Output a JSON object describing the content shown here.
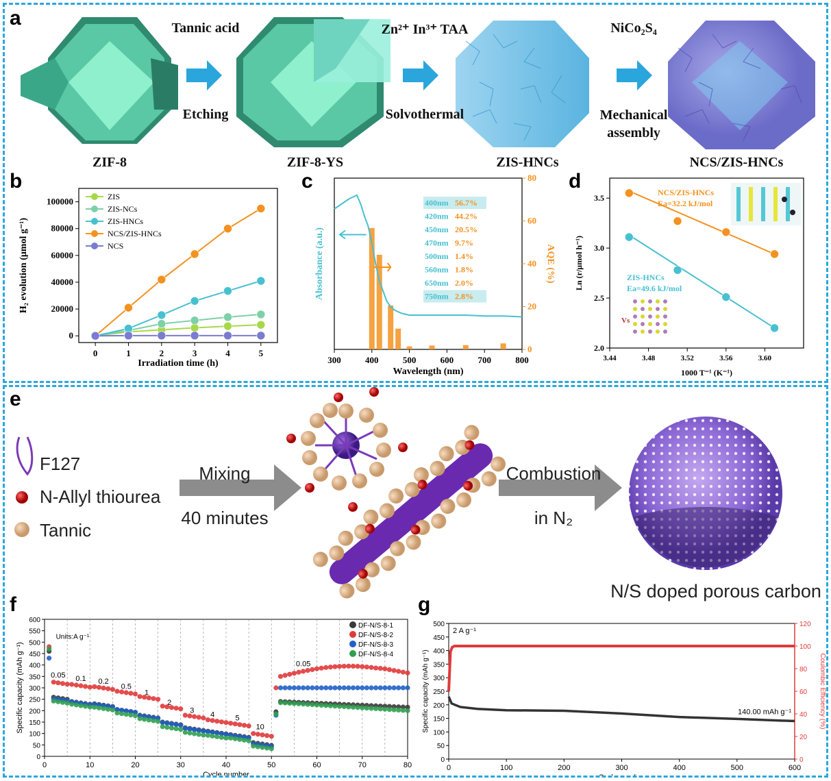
{
  "panel_a": {
    "label": "a",
    "steps": [
      {
        "top": "Tannic acid",
        "bottom": "Etching"
      },
      {
        "top": "Zn²⁺ In³⁺ TAA",
        "bottom": "Solvothermal"
      },
      {
        "top": "NiCo₂S₄",
        "bottom": "Mechanical assembly"
      }
    ],
    "products": [
      "ZIF-8",
      "ZIF-8-YS",
      "ZIS-HNCs",
      "NCS/ZIS-HNCs"
    ]
  },
  "panel_e": {
    "label": "e",
    "legend": [
      "F127",
      "N-Allyl thiourea",
      "Tannic"
    ],
    "step1_top": "Mixing",
    "step1_bottom": "40 minutes",
    "step2_top": "Combustion",
    "step2_bottom": "in N₂",
    "product": "N/S doped porous carbon"
  },
  "chart_data": [
    {
      "id": "b",
      "label": "b",
      "type": "line",
      "xlabel": "Irradiation time (h)",
      "ylabel": "H₂ evolution (μmol g⁻¹)",
      "xlim": [
        -0.5,
        5.5
      ],
      "ylim": [
        -5000,
        110000
      ],
      "xticks": [
        0,
        1,
        2,
        3,
        4,
        5
      ],
      "yticks": [
        0,
        20000,
        40000,
        60000,
        80000,
        100000
      ],
      "x": [
        0,
        1,
        2,
        3,
        4,
        5
      ],
      "series": [
        {
          "name": "ZIS",
          "color": "#a8d84a",
          "values": [
            0,
            3000,
            4500,
            6000,
            7200,
            8200
          ]
        },
        {
          "name": "ZIS-NCs",
          "color": "#7ed0a8",
          "values": [
            0,
            4000,
            9000,
            11500,
            14000,
            16000
          ]
        },
        {
          "name": "ZIS-HNCs",
          "color": "#48c0d0",
          "values": [
            0,
            5500,
            15500,
            26000,
            33500,
            41000
          ]
        },
        {
          "name": "NCS/ZIS-HNCs",
          "color": "#f39220",
          "values": [
            0,
            21000,
            42000,
            61000,
            80000,
            95000
          ]
        },
        {
          "name": "NCS",
          "color": "#7b7bd0",
          "values": [
            0,
            200,
            200,
            200,
            200,
            200
          ]
        }
      ]
    },
    {
      "id": "c",
      "label": "c",
      "type": "line+bar",
      "xlabel": "Wavelength (nm)",
      "ylabel_left": "Absorbance (a.u.)",
      "ylabel_right": "AQE (%)",
      "xlim": [
        300,
        800
      ],
      "ylim_right": [
        0,
        80
      ],
      "xticks": [
        300,
        400,
        500,
        600,
        700,
        800
      ],
      "yticks_right": [
        0,
        20,
        40,
        60,
        80
      ],
      "absorbance": {
        "x": [
          300,
          320,
          340,
          360,
          370,
          380,
          390,
          400,
          410,
          420,
          430,
          440,
          450,
          460,
          480,
          500,
          550,
          600,
          650,
          700,
          750,
          800
        ],
        "y": [
          0.82,
          0.85,
          0.88,
          0.9,
          0.85,
          0.78,
          0.72,
          0.62,
          0.5,
          0.4,
          0.34,
          0.28,
          0.25,
          0.23,
          0.21,
          0.2,
          0.2,
          0.2,
          0.2,
          0.195,
          0.195,
          0.19
        ]
      },
      "bars": {
        "x": [
          400,
          420,
          450,
          470,
          500,
          560,
          650,
          750
        ],
        "values": [
          56.7,
          44.2,
          20.5,
          9.7,
          1.4,
          1.8,
          2.0,
          2.8
        ]
      },
      "table": [
        {
          "wl": "400nm",
          "val": "56.7%",
          "highlight": true
        },
        {
          "wl": "420nm",
          "val": "44.2%",
          "highlight": false
        },
        {
          "wl": "450nm",
          "val": "20.5%",
          "highlight": false
        },
        {
          "wl": "470nm",
          "val": "9.7%",
          "highlight": false
        },
        {
          "wl": "500nm",
          "val": "1.4%",
          "highlight": false
        },
        {
          "wl": "560nm",
          "val": "1.8%",
          "highlight": false
        },
        {
          "wl": "650nm",
          "val": "2.0%",
          "highlight": false
        },
        {
          "wl": "750nm",
          "val": "2.8%",
          "highlight": true
        }
      ]
    },
    {
      "id": "d",
      "label": "d",
      "type": "scatter+fit",
      "xlabel": "1000 T⁻¹ (K⁻¹)",
      "ylabel": "Ln (r/μmol h⁻¹)",
      "xlim": [
        3.44,
        3.64
      ],
      "ylim": [
        2.0,
        3.7
      ],
      "xticks": [
        3.44,
        3.48,
        3.52,
        3.56,
        3.6
      ],
      "yticks": [
        2.0,
        2.5,
        3.0,
        3.5
      ],
      "series": [
        {
          "name": "NCS/ZIS-HNCs",
          "ea": "Ea=32.2 kJ/mol",
          "color": "#f39220",
          "x": [
            3.46,
            3.51,
            3.56,
            3.61
          ],
          "y": [
            3.55,
            3.27,
            3.16,
            2.94
          ],
          "fit": [
            3.57,
            2.94
          ]
        },
        {
          "name": "ZIS-HNCs",
          "ea": "Ea=49.6 kJ/mol",
          "color": "#48c0d0",
          "x": [
            3.46,
            3.51,
            3.56,
            3.61
          ],
          "y": [
            3.11,
            2.78,
            2.51,
            2.2
          ],
          "fit": [
            3.13,
            2.2
          ]
        }
      ],
      "annotation": "Vs"
    },
    {
      "id": "f",
      "label": "f",
      "type": "scatter",
      "xlabel": "Cycle number",
      "ylabel": "Specific capacity (mAh g⁻¹)",
      "xlim": [
        0,
        80
      ],
      "ylim": [
        0,
        600
      ],
      "xticks": [
        0,
        10,
        20,
        30,
        40,
        50,
        60,
        70,
        80
      ],
      "yticks": [
        0,
        50,
        100,
        150,
        200,
        250,
        300,
        350,
        400,
        450,
        500,
        550,
        600
      ],
      "units": "Units:A g⁻¹",
      "rate_labels": [
        {
          "text": "0.05",
          "x": 3,
          "y": 345
        },
        {
          "text": "0.1",
          "x": 8,
          "y": 330
        },
        {
          "text": "0.2",
          "x": 13,
          "y": 318
        },
        {
          "text": "0.5",
          "x": 18,
          "y": 295
        },
        {
          "text": "1",
          "x": 22.5,
          "y": 268
        },
        {
          "text": "2",
          "x": 27.5,
          "y": 225
        },
        {
          "text": "3",
          "x": 32.5,
          "y": 190
        },
        {
          "text": "4",
          "x": 37,
          "y": 172
        },
        {
          "text": "5",
          "x": 42.5,
          "y": 158
        },
        {
          "text": "10",
          "x": 47.5,
          "y": 118
        },
        {
          "text": "0.05",
          "x": 57,
          "y": 395
        }
      ],
      "series": [
        {
          "name": "DF-N/S-8-1",
          "color": "#3a3a3a",
          "levels": [
            262,
            240,
            230,
            205,
            180,
            150,
            125,
            110,
            95,
            60,
            255,
            240,
            215
          ]
        },
        {
          "name": "DF-N/S-8-2",
          "color": "#e03a3a",
          "levels": [
            328,
            315,
            305,
            285,
            262,
            220,
            180,
            160,
            145,
            100,
            360,
            395,
            375
          ]
        },
        {
          "name": "DF-N/S-8-3",
          "color": "#2060c8",
          "levels": [
            255,
            238,
            228,
            205,
            178,
            148,
            122,
            108,
            92,
            55,
            240,
            300,
            300
          ]
        },
        {
          "name": "DF-N/S-8-4",
          "color": "#30a050",
          "levels": [
            245,
            228,
            215,
            190,
            165,
            130,
            105,
            92,
            80,
            45,
            245,
            235,
            200
          ]
        }
      ]
    },
    {
      "id": "g",
      "label": "g",
      "type": "line",
      "xlabel": "Cycle number",
      "ylabel_left": "Specific capacity (mAh g⁻¹)",
      "ylabel_right": "Coulombic Efficiency (%)",
      "xlim": [
        0,
        600
      ],
      "ylim_left": [
        0,
        500
      ],
      "ylim_right": [
        0,
        120
      ],
      "xticks": [
        0,
        100,
        200,
        300,
        400,
        500,
        600
      ],
      "yticks_left": [
        0,
        50,
        100,
        150,
        200,
        250,
        300,
        350,
        400,
        450,
        500
      ],
      "yticks_right": [
        0,
        20,
        40,
        60,
        80,
        100,
        120
      ],
      "annotation_rate": "2 A g⁻¹",
      "annotation_end": "140.00 mAh g⁻¹",
      "capacity": {
        "x": [
          0,
          5,
          20,
          50,
          100,
          200,
          300,
          400,
          500,
          600
        ],
        "y": [
          230,
          205,
          192,
          185,
          180,
          178,
          168,
          155,
          148,
          140
        ]
      },
      "efficiency": {
        "x": [
          0,
          3,
          6,
          10,
          600
        ],
        "y": [
          60,
          95,
          99,
          100,
          100
        ]
      }
    }
  ],
  "colors": {
    "frame": "#2ba6de",
    "arrow_blue": "#2aa6dc",
    "arrow_gray": "#8c8c8c"
  }
}
